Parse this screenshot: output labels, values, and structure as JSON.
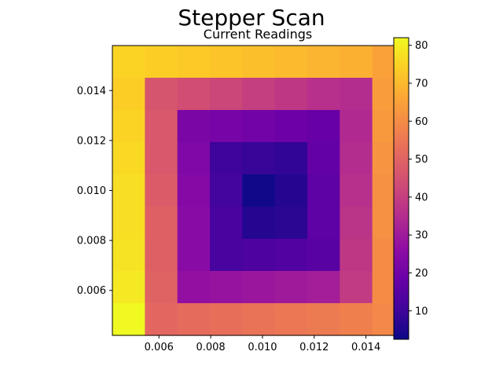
{
  "chart_data": {
    "type": "heatmap",
    "title": "Stepper Scan",
    "subtitle": "Current Readings",
    "xlabel": "",
    "ylabel": "",
    "x_range": [
      0.0042,
      0.0155
    ],
    "y_range": [
      0.0042,
      0.0158
    ],
    "x_ticks": [
      "0.006",
      "0.008",
      "0.010",
      "0.012",
      "0.014"
    ],
    "x_tick_values": [
      0.006,
      0.008,
      0.01,
      0.012,
      0.014
    ],
    "y_ticks": [
      "0.006",
      "0.008",
      "0.010",
      "0.012",
      "0.014"
    ],
    "y_tick_values": [
      0.006,
      0.008,
      0.01,
      0.012,
      0.014
    ],
    "x_centers": [
      0.00485,
      0.00612,
      0.00738,
      0.00865,
      0.00992,
      0.01118,
      0.01245,
      0.01372,
      0.01498
    ],
    "y_centers": [
      0.00483,
      0.00611,
      0.00739,
      0.00867,
      0.00995,
      0.01123,
      0.01251,
      0.01379,
      0.01507
    ],
    "grid_rows_top_to_bottom": [
      [
        75,
        74,
        73,
        72,
        71,
        70,
        69,
        68,
        65
      ],
      [
        74,
        46,
        44,
        42,
        40,
        38,
        36,
        35,
        64
      ],
      [
        75,
        47,
        22,
        21,
        20,
        19,
        18,
        34,
        63
      ],
      [
        76,
        47,
        23,
        10,
        9,
        8,
        17,
        35,
        62
      ],
      [
        77,
        48,
        24,
        11,
        3,
        6,
        16,
        36,
        61
      ],
      [
        77,
        49,
        25,
        12,
        6,
        7,
        16,
        37,
        61
      ],
      [
        78,
        49,
        25,
        12,
        13,
        14,
        15,
        38,
        60
      ],
      [
        79,
        50,
        27,
        28,
        29,
        30,
        31,
        39,
        60
      ],
      [
        82,
        51,
        52,
        53,
        54,
        55,
        56,
        57,
        59
      ]
    ],
    "colormap": "plasma",
    "colorbar": {
      "range": [
        2.5,
        82
      ],
      "ticks": [
        "10",
        "20",
        "30",
        "40",
        "50",
        "60",
        "70",
        "80"
      ],
      "tick_values": [
        10,
        20,
        30,
        40,
        50,
        60,
        70,
        80
      ]
    }
  }
}
